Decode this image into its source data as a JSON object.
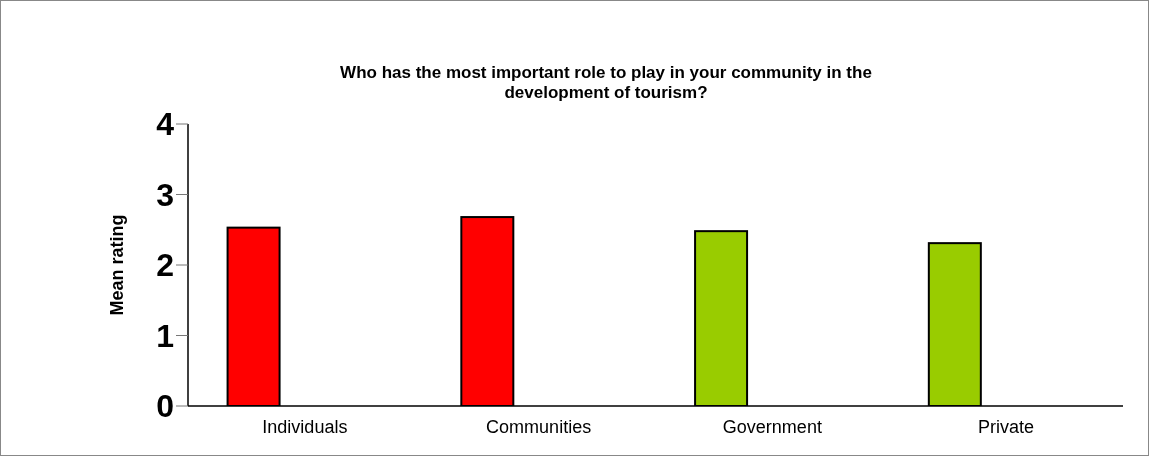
{
  "chart_data": {
    "type": "bar",
    "title": "Who has the most important role to play in your community in the development of tourism?",
    "ylabel": "Mean rating",
    "categories": [
      "Individuals",
      "Communities",
      "Government",
      "Private"
    ],
    "values": [
      2.53,
      2.68,
      2.48,
      2.31
    ],
    "colors": [
      "#ff0000",
      "#ff0000",
      "#99cc00",
      "#99cc00"
    ],
    "ylim": [
      0,
      4
    ],
    "yticks": [
      0,
      1,
      2,
      3,
      4
    ],
    "grid": false
  }
}
